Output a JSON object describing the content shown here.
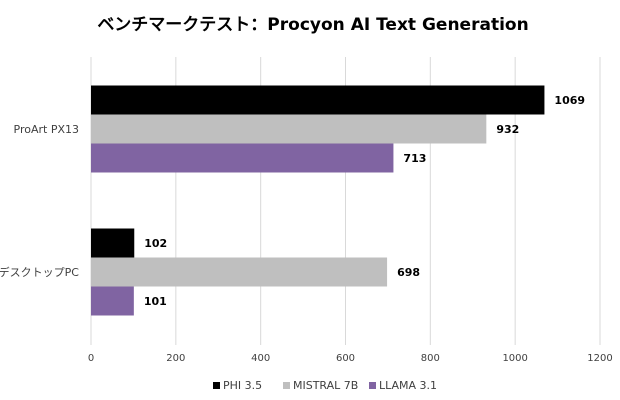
{
  "chart_data": {
    "type": "bar",
    "orientation": "horizontal",
    "title": "ベンチマークテスト：Procyon AI Text Generation",
    "categories": [
      "ProArt PX13",
      "デスクトップPC"
    ],
    "series": [
      {
        "name": "PHI 3.5",
        "color": "#000000",
        "values": [
          1069,
          102
        ]
      },
      {
        "name": "MISTRAL 7B",
        "color": "#bfbfbf",
        "values": [
          932,
          698
        ]
      },
      {
        "name": "LLAMA 3.1",
        "color": "#8064a2",
        "values": [
          713,
          101
        ]
      }
    ],
    "xlim": [
      0,
      1200
    ],
    "xticks": [
      "0",
      "200",
      "400",
      "600",
      "800",
      "1000",
      "1200"
    ],
    "grid": true,
    "legend_position": "bottom",
    "xlabel": "",
    "ylabel": ""
  }
}
